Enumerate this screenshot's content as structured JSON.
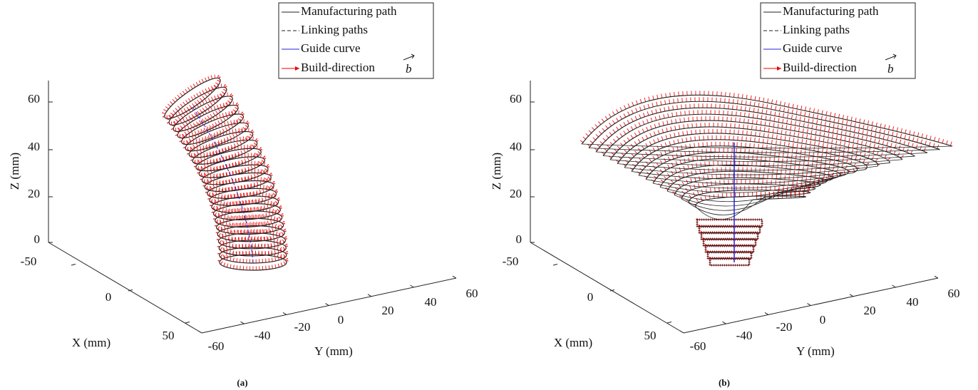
{
  "panels": [
    {
      "caption": "(a)",
      "legend": [
        "Manufacturing path",
        "Linking paths",
        "Guide curve",
        "Build-direction"
      ],
      "vector_symbol": "b",
      "z_axis": {
        "label": "Z (mm)",
        "ticks": [
          0,
          20,
          40,
          60
        ]
      },
      "x_axis": {
        "label": "X (mm)",
        "ticks": [
          -50,
          0,
          50
        ]
      },
      "y_axis": {
        "label": "Y (mm)",
        "ticks": [
          -60,
          -40,
          -20,
          0,
          20,
          40,
          60
        ]
      }
    },
    {
      "caption": "(b)",
      "legend": [
        "Manufacturing path",
        "Linking paths",
        "Guide curve",
        "Build-direction"
      ],
      "vector_symbol": "b",
      "z_axis": {
        "label": "Z (mm)",
        "ticks": [
          0,
          20,
          40,
          60
        ]
      },
      "x_axis": {
        "label": "X (mm)",
        "ticks": [
          -50,
          0,
          50
        ]
      },
      "y_axis": {
        "label": "Y (mm)",
        "ticks": [
          -60,
          -40,
          -20,
          0,
          20,
          40,
          60
        ]
      }
    }
  ]
}
